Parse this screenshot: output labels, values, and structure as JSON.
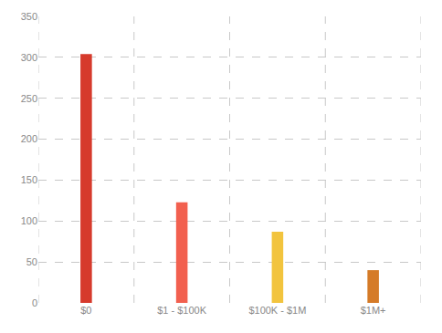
{
  "chart_data": {
    "type": "bar",
    "categories": [
      "$0",
      "$1 - $100K",
      "$100K - $1M",
      "$1M+"
    ],
    "values": [
      304,
      123,
      87,
      40
    ],
    "colors": [
      "#d63a2c",
      "#f2604f",
      "#f2c43e",
      "#d57b28"
    ],
    "ylim": [
      0,
      350
    ],
    "yticks": [
      0,
      50,
      100,
      150,
      200,
      250,
      300,
      350
    ],
    "grid": true
  }
}
